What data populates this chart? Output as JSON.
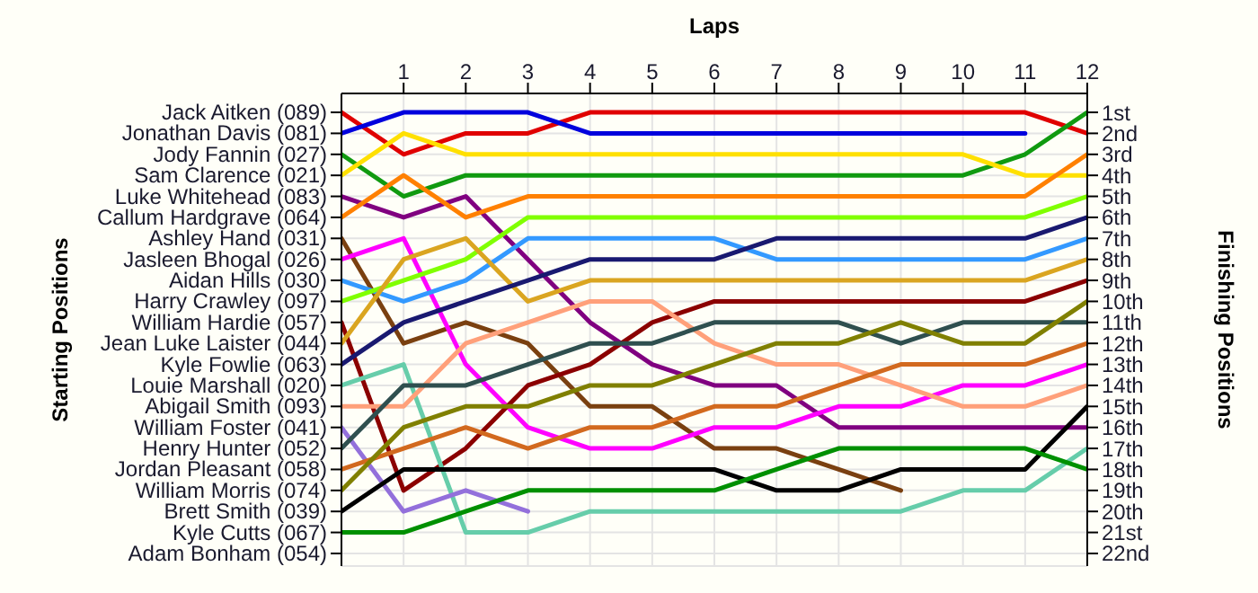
{
  "chart_data": {
    "type": "line",
    "xlabel": "Laps",
    "ylabel": "Finishing Positions",
    "annotations": [
      "Starting Positions",
      "Jack Aitken (089)",
      "Jonathan Davis (081)",
      "Jody Fannin (027)",
      "Sam Clarence (021)",
      "Luke Whitehead (083)",
      "Callum Hardgrave (064)",
      "Ashley Hand (031)",
      "Jasleen Bhogal (026)",
      "Aidan Hills (030)",
      "Harry Crawley (097)",
      "William Hardie (057)",
      "Jean Luke Laister (044)",
      "Kyle Fowlie (063)",
      "Louie Marshall (020)",
      "Abigail Smith (093)",
      "William Foster (041)",
      "Henry Hunter (052)",
      "Jordan Pleasant (058)",
      "William Morris (074)",
      "Brett Smith (039)",
      "Kyle Cutts (067)",
      "Adam Bonham (054)"
    ],
    "x": [
      0,
      1,
      2,
      3,
      4,
      5,
      6,
      7,
      8,
      9,
      10,
      11,
      12
    ],
    "xlim": [
      0,
      12
    ],
    "xticks": [
      1,
      2,
      3,
      4,
      5,
      6,
      7,
      8,
      9,
      10,
      11,
      12
    ],
    "ylim": [
      22.6,
      0.1
    ],
    "yticks": [
      {
        "value": 1,
        "label": "1st"
      },
      {
        "value": 2,
        "label": "2nd"
      },
      {
        "value": 3,
        "label": "3rd"
      },
      {
        "value": 4,
        "label": "4th"
      },
      {
        "value": 5,
        "label": "5th"
      },
      {
        "value": 6,
        "label": "6th"
      },
      {
        "value": 7,
        "label": "7th"
      },
      {
        "value": 8,
        "label": "8th"
      },
      {
        "value": 9,
        "label": "9th"
      },
      {
        "value": 10,
        "label": "10th"
      },
      {
        "value": 11,
        "label": "11th"
      },
      {
        "value": 12,
        "label": "12th"
      },
      {
        "value": 13,
        "label": "13th"
      },
      {
        "value": 14,
        "label": "14th"
      },
      {
        "value": 15,
        "label": "15th"
      },
      {
        "value": 16,
        "label": "16th"
      },
      {
        "value": 17,
        "label": "17th"
      },
      {
        "value": 18,
        "label": "18th"
      },
      {
        "value": 19,
        "label": "19th"
      },
      {
        "value": 20,
        "label": "20th"
      },
      {
        "value": 21,
        "label": "21st"
      },
      {
        "value": 22,
        "label": "22nd"
      }
    ],
    "grid": true,
    "marker": "none",
    "line_style": "solid",
    "series": [
      {
        "color": "#e00000",
        "values": [
          1,
          3,
          2,
          2,
          1,
          1,
          1,
          1,
          1,
          1,
          1,
          1,
          2
        ]
      },
      {
        "color": "#0000dd",
        "values": [
          2,
          1,
          1,
          1,
          2,
          2,
          2,
          2,
          2,
          2,
          2,
          2,
          null
        ]
      },
      {
        "color": "#109a10",
        "values": [
          3,
          5,
          4,
          4,
          4,
          4,
          4,
          4,
          4,
          4,
          4,
          3,
          1
        ]
      },
      {
        "color": "#ffe000",
        "values": [
          4,
          2,
          3,
          3,
          3,
          3,
          3,
          3,
          3,
          3,
          3,
          4,
          4
        ]
      },
      {
        "color": "#800080",
        "values": [
          5,
          6,
          5,
          8,
          11,
          13,
          14,
          14,
          16,
          16,
          16,
          16,
          16
        ]
      },
      {
        "color": "#ff8000",
        "values": [
          6,
          4,
          6,
          5,
          5,
          5,
          5,
          5,
          5,
          5,
          5,
          5,
          3
        ]
      },
      {
        "color": "#7a4010",
        "values": [
          7,
          12,
          11,
          12,
          15,
          15,
          17,
          17,
          18,
          19,
          null,
          null,
          null
        ]
      },
      {
        "color": "#ff00ff",
        "values": [
          8,
          7,
          13,
          16,
          17,
          17,
          16,
          16,
          15,
          15,
          14,
          14,
          13
        ]
      },
      {
        "color": "#3399ff",
        "values": [
          9,
          10,
          9,
          7,
          7,
          7,
          7,
          8,
          8,
          8,
          8,
          8,
          7
        ]
      },
      {
        "color": "#80ff00",
        "values": [
          10,
          9,
          8,
          6,
          6,
          6,
          6,
          6,
          6,
          6,
          6,
          6,
          5
        ]
      },
      {
        "color": "#8b0000",
        "values": [
          11,
          19,
          17,
          14,
          13,
          11,
          10,
          10,
          10,
          10,
          10,
          10,
          9
        ]
      },
      {
        "color": "#daa520",
        "values": [
          12,
          8,
          7,
          10,
          9,
          9,
          9,
          9,
          9,
          9,
          9,
          9,
          8
        ]
      },
      {
        "color": "#191970",
        "values": [
          13,
          11,
          10,
          9,
          8,
          8,
          8,
          7,
          7,
          7,
          7,
          7,
          6
        ]
      },
      {
        "color": "#66cdaa",
        "values": [
          14,
          13,
          21,
          21,
          20,
          20,
          20,
          20,
          20,
          20,
          19,
          19,
          17
        ]
      },
      {
        "color": "#ffa07a",
        "values": [
          15,
          15,
          12,
          11,
          10,
          10,
          12,
          13,
          13,
          14,
          15,
          15,
          14
        ]
      },
      {
        "color": "#9370db",
        "values": [
          16,
          20,
          19,
          20,
          null,
          null,
          null,
          null,
          null,
          null,
          null,
          null,
          null
        ]
      },
      {
        "color": "#2f4f4f",
        "values": [
          17,
          14,
          14,
          13,
          12,
          12,
          11,
          11,
          11,
          12,
          11,
          11,
          11
        ]
      },
      {
        "color": "#d2691e",
        "values": [
          18,
          17,
          16,
          17,
          16,
          16,
          15,
          15,
          14,
          13,
          13,
          13,
          12
        ]
      },
      {
        "color": "#808000",
        "values": [
          19,
          16,
          15,
          15,
          14,
          14,
          13,
          12,
          12,
          11,
          12,
          12,
          10
        ]
      },
      {
        "color": "#000000",
        "values": [
          20,
          18,
          18,
          18,
          18,
          18,
          18,
          19,
          19,
          18,
          18,
          18,
          15
        ]
      },
      {
        "color": "#009000",
        "values": [
          21,
          21,
          20,
          19,
          19,
          19,
          19,
          18,
          17,
          17,
          17,
          17,
          18
        ]
      }
    ]
  }
}
